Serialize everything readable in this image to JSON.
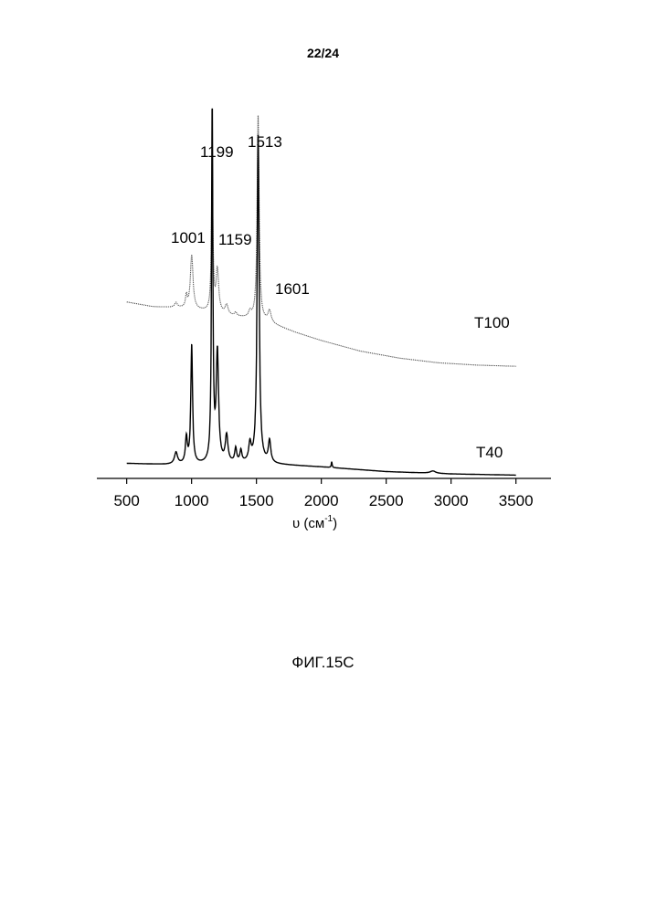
{
  "page_number": "22/24",
  "figure_caption": "ФИГ.15С",
  "chart_data": {
    "type": "line",
    "title": "",
    "xlabel": "υ (см",
    "xlabel_sup": "-1",
    "xlabel_suffix": ")",
    "ylabel": "",
    "xlim": [
      270,
      3770
    ],
    "x_ticks": [
      500,
      1000,
      1500,
      2000,
      2500,
      3000,
      3500
    ],
    "y_axis_shown": false,
    "grid": false,
    "series": [
      {
        "name": "T100",
        "style": "dotted-gray",
        "baseline": [
          [
            500,
            0.4
          ],
          [
            700,
            0.36
          ],
          [
            900,
            0.35
          ],
          [
            1000,
            0.34
          ],
          [
            1100,
            0.32
          ],
          [
            1300,
            0.28
          ],
          [
            1500,
            0.25
          ],
          [
            1601,
            0.22
          ],
          [
            1800,
            0.14
          ],
          [
            2000,
            0.07
          ],
          [
            2300,
            -0.02
          ],
          [
            2600,
            -0.08
          ],
          [
            2900,
            -0.12
          ],
          [
            3200,
            -0.14
          ],
          [
            3500,
            -0.15
          ]
        ],
        "peaks": [
          [
            1001,
            0.46,
            12
          ],
          [
            1159,
            1.25,
            7
          ],
          [
            1199,
            0.36,
            12
          ],
          [
            1513,
            1.76,
            9
          ],
          [
            1601,
            0.1,
            14
          ],
          [
            960,
            0.1,
            8
          ],
          [
            880,
            0.04,
            12
          ],
          [
            1270,
            0.08,
            14
          ],
          [
            1340,
            0.03,
            10
          ],
          [
            1450,
            0.05,
            12
          ]
        ]
      },
      {
        "name": "T40",
        "style": "solid-black",
        "baseline": [
          [
            500,
            0.05
          ],
          [
            800,
            0.04
          ],
          [
            1100,
            0.04
          ],
          [
            1500,
            0.05
          ],
          [
            1650,
            0.04
          ],
          [
            2000,
            0.02
          ],
          [
            2500,
            -0.02
          ],
          [
            3000,
            -0.04
          ],
          [
            3500,
            -0.05
          ]
        ],
        "peaks": [
          [
            1001,
            1.02,
            8
          ],
          [
            1159,
            3.05,
            6
          ],
          [
            1199,
            0.94,
            11
          ],
          [
            1513,
            2.83,
            9
          ],
          [
            1601,
            0.19,
            11
          ],
          [
            960,
            0.22,
            9
          ],
          [
            880,
            0.1,
            14
          ],
          [
            1270,
            0.23,
            12
          ],
          [
            1340,
            0.12,
            9
          ],
          [
            1380,
            0.1,
            9
          ],
          [
            1450,
            0.15,
            11
          ],
          [
            2080,
            0.05,
            4
          ],
          [
            2860,
            0.02,
            25
          ]
        ]
      }
    ],
    "series_labels": [
      {
        "series": "T100",
        "text": "T100"
      },
      {
        "series": "T40",
        "text": "T40"
      }
    ],
    "peak_labels": [
      "1199",
      "1513",
      "1001",
      "1159",
      "1601"
    ]
  }
}
